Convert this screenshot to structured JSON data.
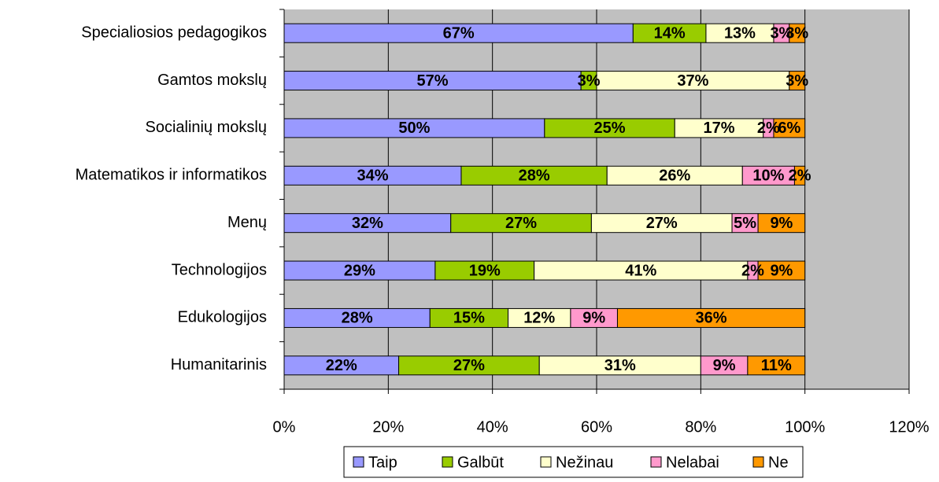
{
  "chart_data": {
    "type": "stacked-bar-horizontal",
    "categories": [
      "Specialiosios pedagogikos",
      "Gamtos mokslų",
      "Socialinių mokslų",
      "Matematikos ir informatikos",
      "Menų",
      "Technologijos",
      "Edukologijos",
      "Humanitarinis"
    ],
    "series": [
      {
        "name": "Taip",
        "color": "#9999ff",
        "values": [
          67,
          57,
          50,
          34,
          32,
          29,
          28,
          22
        ],
        "value_labels": [
          "67%",
          "57%",
          "50%",
          "34%",
          "32%",
          "29%",
          "28%",
          "22%"
        ]
      },
      {
        "name": "Galbūt",
        "color": "#99cc00",
        "values": [
          14,
          3,
          25,
          28,
          27,
          19,
          15,
          27
        ],
        "value_labels": [
          "14%",
          "3%",
          "25%",
          "28%",
          "27%",
          "19%",
          "15%",
          "27%"
        ]
      },
      {
        "name": "Nežinau",
        "color": "#ffffcc",
        "values": [
          13,
          37,
          17,
          26,
          27,
          41,
          12,
          31
        ],
        "value_labels": [
          "13%",
          "37%",
          "17%",
          "26%",
          "27%",
          "41%",
          "12%",
          "31%"
        ]
      },
      {
        "name": "Nelabai",
        "color": "#ff99cc",
        "values": [
          3,
          null,
          2,
          10,
          5,
          2,
          9,
          9
        ],
        "value_labels": [
          "3%",
          null,
          "2%",
          "10%",
          "5%",
          "2%",
          "9%",
          "9%"
        ]
      },
      {
        "name": "Ne",
        "color": "#ff9900",
        "values": [
          3,
          3,
          6,
          2,
          9,
          9,
          36,
          11
        ],
        "value_labels": [
          "3%",
          "3%",
          "6%",
          "2%",
          "9%",
          "9%",
          "36%",
          "11%"
        ]
      }
    ],
    "xlim": [
      0,
      120
    ],
    "xticks": [
      {
        "value": 0,
        "label": "0%"
      },
      {
        "value": 20,
        "label": "20%"
      },
      {
        "value": 40,
        "label": "40%"
      },
      {
        "value": 60,
        "label": "60%"
      },
      {
        "value": 80,
        "label": "80%"
      },
      {
        "value": 100,
        "label": "100%"
      },
      {
        "value": 120,
        "label": "120%"
      }
    ],
    "grid": true,
    "legend": "bottom"
  }
}
